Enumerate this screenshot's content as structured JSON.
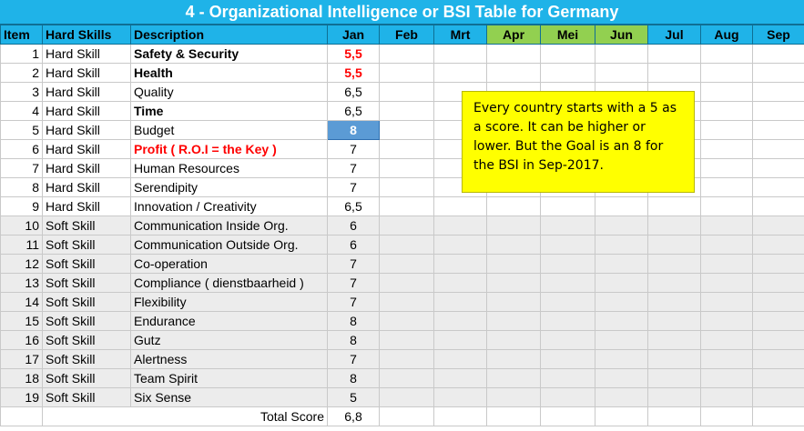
{
  "title": "4 - Organizational Intelligence or BSI Table for Germany",
  "headers": {
    "item": "Item",
    "skills": "Hard Skills",
    "description": "Description",
    "months": [
      "Jan",
      "Feb",
      "Mrt",
      "Apr",
      "Mei",
      "Jun",
      "Jul",
      "Aug",
      "Sep"
    ]
  },
  "rows": [
    {
      "item": "1",
      "skill": "Hard Skill",
      "description": "Safety & Security",
      "jan": "5,5"
    },
    {
      "item": "2",
      "skill": "Hard Skill",
      "description": "Health",
      "jan": "5,5"
    },
    {
      "item": "3",
      "skill": "Hard Skill",
      "description": "Quality",
      "jan": "6,5"
    },
    {
      "item": "4",
      "skill": "Hard Skill",
      "description": "Time",
      "jan": "6,5"
    },
    {
      "item": "5",
      "skill": "Hard Skill",
      "description": "Budget",
      "jan": "8"
    },
    {
      "item": "6",
      "skill": "Hard Skill",
      "description": "Profit ( R.O.I = the Key )",
      "jan": "7"
    },
    {
      "item": "7",
      "skill": "Hard Skill",
      "description": "Human Resources",
      "jan": "7"
    },
    {
      "item": "8",
      "skill": "Hard Skill",
      "description": "Serendipity",
      "jan": "7"
    },
    {
      "item": "9",
      "skill": "Hard Skill",
      "description": "Innovation / Creativity",
      "jan": "6,5"
    },
    {
      "item": "10",
      "skill": "Soft Skill",
      "description": "Communication Inside Org.",
      "jan": "6"
    },
    {
      "item": "11",
      "skill": "Soft Skill",
      "description": "Communication Outside Org.",
      "jan": "6"
    },
    {
      "item": "12",
      "skill": "Soft Skill",
      "description": "Co-operation",
      "jan": "7"
    },
    {
      "item": "13",
      "skill": "Soft Skill",
      "description": "Compliance ( dienstbaarheid )",
      "jan": "7"
    },
    {
      "item": "14",
      "skill": "Soft Skill",
      "description": "Flexibility",
      "jan": "7"
    },
    {
      "item": "15",
      "skill": "Soft Skill",
      "description": "Endurance",
      "jan": "8"
    },
    {
      "item": "16",
      "skill": "Soft Skill",
      "description": "Gutz",
      "jan": "8"
    },
    {
      "item": "17",
      "skill": "Soft Skill",
      "description": "Alertness",
      "jan": "7"
    },
    {
      "item": "18",
      "skill": "Soft Skill",
      "description": "Team Spirit",
      "jan": "8"
    },
    {
      "item": "19",
      "skill": "Soft Skill",
      "description": "Six Sense",
      "jan": "5"
    }
  ],
  "total": {
    "label": "Total Score",
    "jan": "6,8"
  },
  "note": "Every country starts with a 5 as a score. It can be higher or lower. But the Goal is an 8 for the BSI in Sep-2017.",
  "colors": {
    "header": "#1fb3e8",
    "green_header": "#92d050",
    "note": "#ffff00",
    "selected_cell": "#5b9bd5",
    "red_text": "#ff0000"
  }
}
